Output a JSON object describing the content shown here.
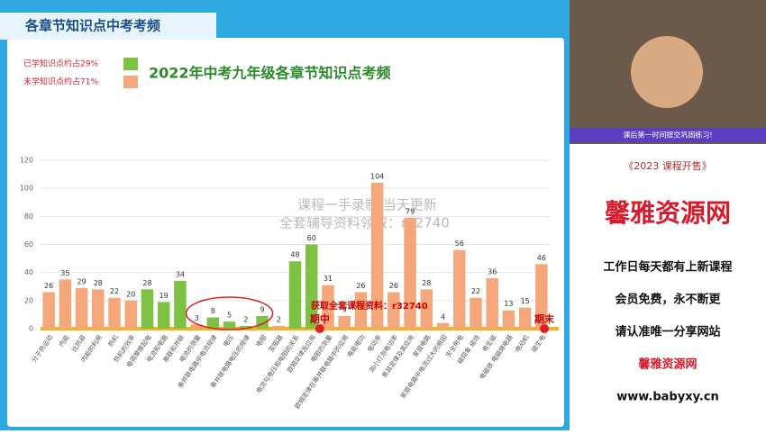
{
  "header": {
    "title": "各章节知识点中考考频"
  },
  "chart_data": {
    "type": "bar",
    "title": "2022年中考九年级各章节知识点考频",
    "legend": [
      {
        "label": "已学知识点约占29%",
        "color": "#7dc242"
      },
      {
        "label": "未学知识点约占71%",
        "color": "#f4a77a"
      }
    ],
    "categories": [
      "分子热运动",
      "内能",
      "比热容",
      "内能的利用",
      "热机",
      "热机的效率",
      "电荷摩擦起电",
      "电流和电路",
      "串联和并联",
      "电流的测量",
      "串并联电路中电流规律",
      "电压",
      "串并联电路电压的规律",
      "电阻",
      "变阻器",
      "电流与电压和电阻的关系",
      "欧姆定律及应用",
      "电阻的测量",
      "欧姆定律在串并联电路中的应用",
      "电能电功",
      "电功率",
      "测小灯泡电功率",
      "焦耳定律及其应用",
      "家庭电路",
      "家庭电路中电流过大的原因",
      "安全用电",
      "磁现象 磁场",
      "电生磁",
      "电磁铁 电磁继电器",
      "电动机",
      "磁生电"
    ],
    "values": [
      26,
      35,
      29,
      28,
      22,
      20,
      28,
      19,
      34,
      3,
      8,
      5,
      2,
      9,
      2,
      48,
      60,
      31,
      9,
      26,
      104,
      26,
      79,
      28,
      4,
      56,
      22,
      36,
      13,
      15,
      46
    ],
    "colors": [
      "#f4a77a",
      "#f4a77a",
      "#f4a77a",
      "#f4a77a",
      "#f4a77a",
      "#f4a77a",
      "#7dc242",
      "#7dc242",
      "#7dc242",
      "#f4a77a",
      "#7dc242",
      "#7dc242",
      "#7dc242",
      "#7dc242",
      "#f4a77a",
      "#7dc242",
      "#7dc242",
      "#f4a77a",
      "#f4a77a",
      "#f4a77a",
      "#f4a77a",
      "#f4a77a",
      "#f4a77a",
      "#f4a77a",
      "#f4a77a",
      "#f4a77a",
      "#f4a77a",
      "#f4a77a",
      "#f4a77a",
      "#f4a77a",
      "#f4a77a"
    ],
    "ylim": [
      0,
      120
    ],
    "yticks": [
      0,
      20,
      40,
      60,
      80,
      100,
      120
    ],
    "grid": true,
    "annotations": [
      "期中",
      "期末",
      "获取全套课程资料：r32740"
    ]
  },
  "watermark": [
    "课程一手录制 当天更新",
    "全套辅导资料领取：r32740"
  ],
  "sidebar": {
    "banner": "课后第一时间提交巩固练习!",
    "sale": "《2023 课程开售》",
    "brand": "馨雅资源网",
    "lines": [
      "工作日每天都有上新课程",
      "会员免费，永不断更",
      "请认准唯一分享网站"
    ],
    "brand2": "馨雅资源网",
    "url": "www.babyxy.cn"
  }
}
